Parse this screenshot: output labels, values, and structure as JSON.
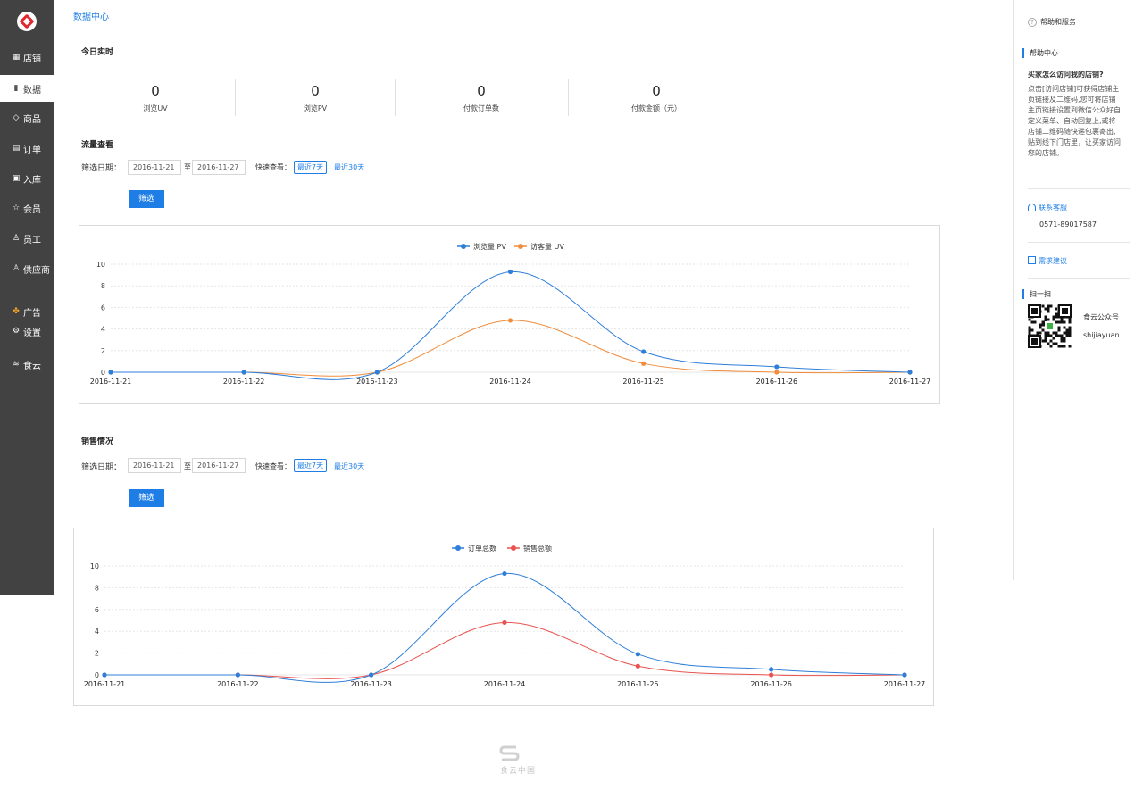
{
  "sidebar": {
    "items": [
      {
        "label": "店铺",
        "icon": "store-icon"
      },
      {
        "label": "数据",
        "icon": "bar-chart-icon",
        "active": true
      },
      {
        "label": "商品",
        "icon": "tag-icon"
      },
      {
        "label": "订单",
        "icon": "order-list-icon"
      },
      {
        "label": "入库",
        "icon": "inbox-icon"
      },
      {
        "label": "会员",
        "icon": "star-icon"
      },
      {
        "label": "员工",
        "icon": "person-icon"
      },
      {
        "label": "供应商",
        "icon": "supplier-icon"
      },
      {
        "label": "广告",
        "icon": "ad-icon"
      },
      {
        "label": "设置",
        "icon": "gear-icon"
      },
      {
        "label": "食云",
        "icon": "shiyun-icon"
      }
    ]
  },
  "breadcrumb": "数据中心",
  "realtime": {
    "title": "今日实时",
    "stats": [
      {
        "value": "0",
        "label": "浏览UV"
      },
      {
        "value": "0",
        "label": "浏览PV"
      },
      {
        "value": "0",
        "label": "付款订单数"
      },
      {
        "value": "0",
        "label": "付款金额（元）"
      }
    ]
  },
  "traffic": {
    "title": "流量查看",
    "filter_label": "筛选日期：",
    "start_date": "2016-11-21",
    "range_sep": "至",
    "end_date": "2016-11-27",
    "quick_label": "快速查看：",
    "quick_7": "最近7天",
    "quick_30": "最近30天",
    "button": "筛选"
  },
  "sales": {
    "title": "销售情况",
    "filter_label": "筛选日期：",
    "start_date": "2016-11-21",
    "range_sep": "至",
    "end_date": "2016-11-27",
    "quick_label": "快速查看：",
    "quick_7": "最近7天",
    "quick_30": "最近30天",
    "button": "筛选"
  },
  "chart_data": [
    {
      "type": "line",
      "x": [
        "2016-11-21",
        "2016-11-22",
        "2016-11-23",
        "2016-11-24",
        "2016-11-25",
        "2016-11-26",
        "2016-11-27"
      ],
      "series": [
        {
          "name": "浏览量 PV",
          "color": "#2f7ed8",
          "values": [
            0,
            0,
            0,
            9.3,
            1.9,
            0.5,
            0
          ]
        },
        {
          "name": "访客量 UV",
          "color": "#f08c3c",
          "values": [
            0,
            0,
            0,
            4.8,
            0.8,
            0,
            0
          ]
        }
      ],
      "ylim": [
        0,
        10
      ],
      "yticks": [
        0,
        2,
        4,
        6,
        8,
        10
      ],
      "grid": true,
      "legend": "top-center"
    },
    {
      "type": "line",
      "x": [
        "2016-11-21",
        "2016-11-22",
        "2016-11-23",
        "2016-11-24",
        "2016-11-25",
        "2016-11-26",
        "2016-11-27"
      ],
      "series": [
        {
          "name": "订单总数",
          "color": "#2f7ed8",
          "values": [
            0,
            0,
            0,
            9.3,
            1.9,
            0.5,
            0
          ]
        },
        {
          "name": "销售总额",
          "color": "#e8534f",
          "values": [
            0,
            0,
            0,
            4.8,
            0.8,
            0,
            0
          ]
        }
      ],
      "ylim": [
        0,
        10
      ],
      "yticks": [
        0,
        2,
        4,
        6,
        8,
        10
      ],
      "grid": true,
      "legend": "top-center"
    }
  ],
  "right_panel": {
    "help_link": "帮助和服务",
    "help_center": "帮助中心",
    "question": "买家怎么访问我的店铺?",
    "answer_lines": [
      "点击[访问店铺]可获得店铺主",
      "页链接及二维码,您可将店铺",
      "主页链接设置到微信公众好自",
      "定义菜单、自动回复上,或将",
      "店铺二维码随快递包裹寄出,",
      "贴到线下门店里，让买家访问",
      "您的店铺。"
    ],
    "contact": "联系客服",
    "phone": "0571-89017587",
    "feedback": "需求建议",
    "scan": "扫一扫",
    "account_label": "食云公众号",
    "account_id": "shijiayuan"
  },
  "footer": "食云中国"
}
